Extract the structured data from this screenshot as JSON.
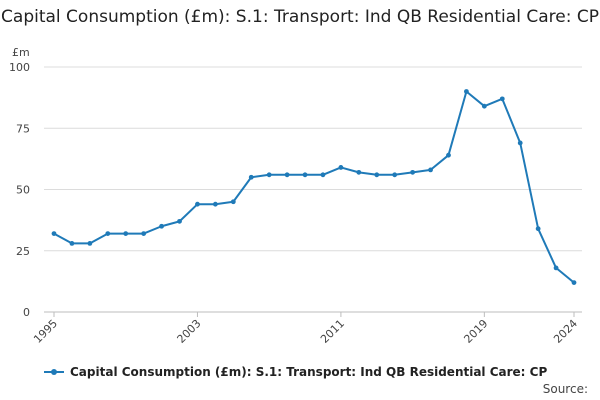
{
  "chart_data": {
    "type": "line",
    "title": "Capital Consumption (£m): S.1: Transport: Ind QB Residential Care: CP",
    "ylabel": "£m",
    "xlabel": "",
    "ylim": [
      0,
      100
    ],
    "y_ticks": [
      0,
      25,
      50,
      75,
      100
    ],
    "x_ticks": [
      1995,
      2003,
      2011,
      2019,
      2024
    ],
    "grid": true,
    "legend_position": "bottom",
    "series": [
      {
        "name": "Capital Consumption (£m): S.1: Transport: Ind QB Residential Care: CP",
        "color": "#1f7ab8",
        "x": [
          1995,
          1996,
          1997,
          1998,
          1999,
          2000,
          2001,
          2002,
          2003,
          2004,
          2005,
          2006,
          2007,
          2008,
          2009,
          2010,
          2011,
          2012,
          2013,
          2014,
          2015,
          2016,
          2017,
          2018,
          2019,
          2020,
          2021,
          2022,
          2023,
          2024
        ],
        "values": [
          32,
          28,
          28,
          32,
          32,
          32,
          35,
          37,
          44,
          44,
          45,
          55,
          56,
          56,
          56,
          56,
          59,
          57,
          56,
          56,
          57,
          58,
          64,
          90,
          84,
          87,
          69,
          34,
          18,
          12
        ]
      }
    ]
  },
  "source_label": "Source:"
}
